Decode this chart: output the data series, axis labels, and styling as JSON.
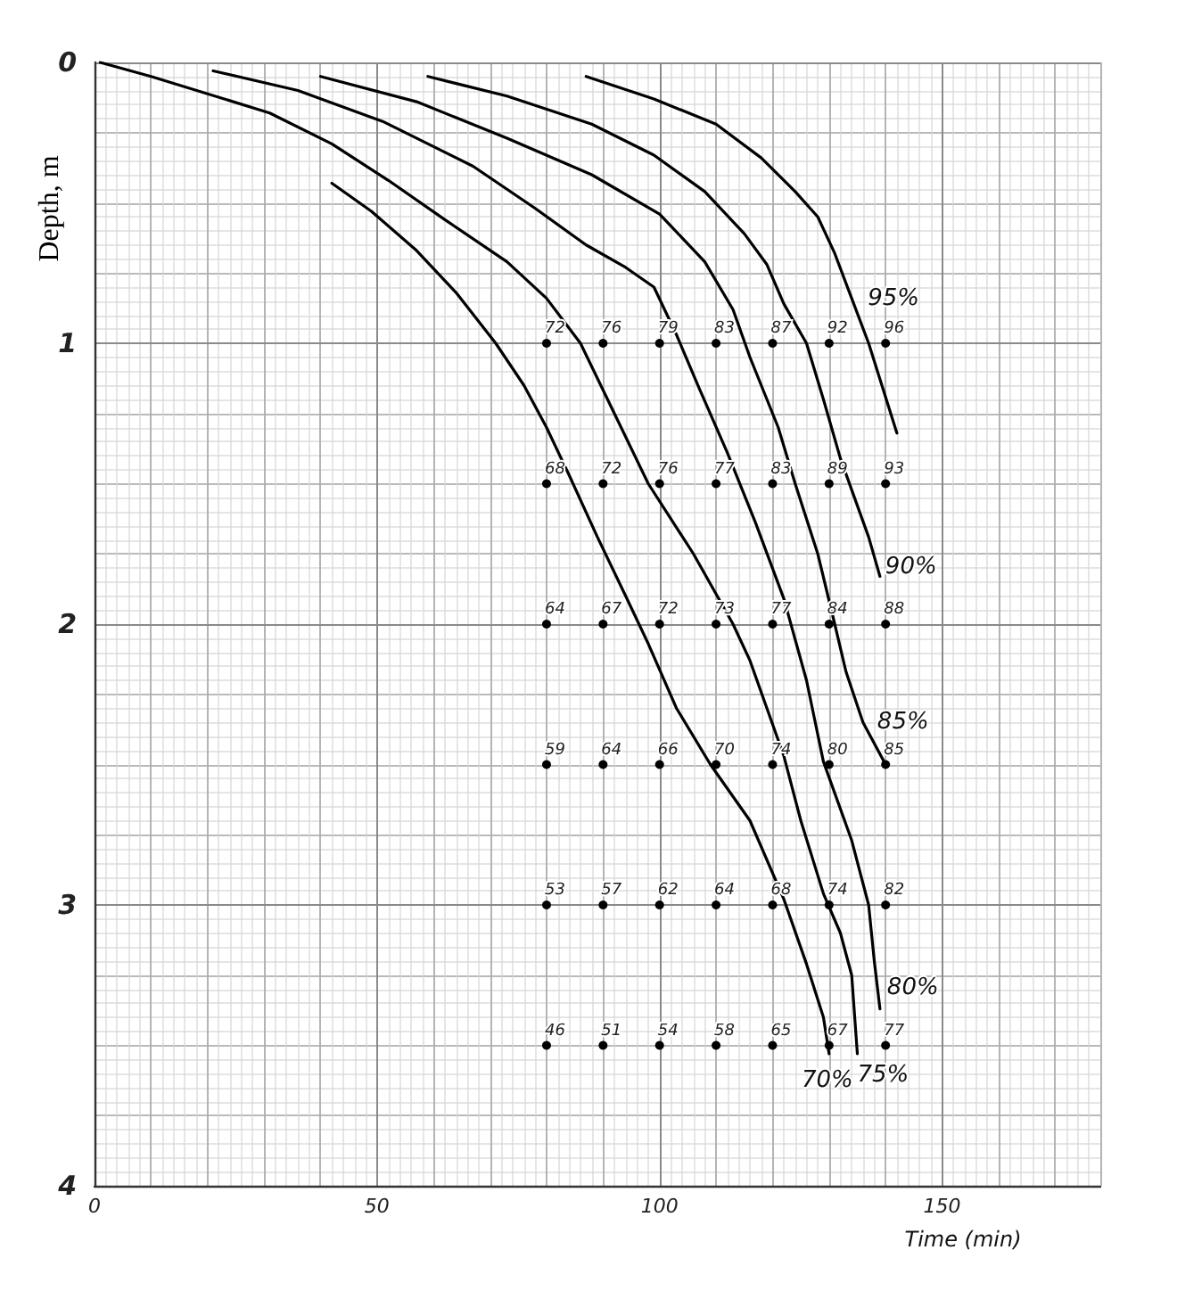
{
  "chart_data": {
    "type": "line",
    "xlabel": "Time (min)",
    "ylabel": "Depth, m",
    "xlim": [
      0,
      178
    ],
    "xticks": [
      0,
      50,
      100,
      150
    ],
    "ylim": [
      4,
      0
    ],
    "yticks": [
      0,
      1,
      2,
      3,
      4
    ],
    "grid": true,
    "series": [
      {
        "color": "#000000",
        "x": [
          87,
          99,
          110,
          118,
          124,
          128,
          131,
          134,
          137,
          142
        ],
        "values": [
          0.05,
          0.13,
          0.22,
          0.34,
          0.46,
          0.55,
          0.68,
          0.84,
          1.0,
          1.32
        ]
      },
      {
        "color": "#000000",
        "x": [
          59,
          73,
          88,
          99,
          108,
          115,
          119,
          122,
          126,
          129,
          132,
          137,
          139
        ],
        "values": [
          0.05,
          0.12,
          0.22,
          0.33,
          0.46,
          0.61,
          0.72,
          0.86,
          1.0,
          1.2,
          1.41,
          1.69,
          1.83
        ]
      },
      {
        "color": "#000000",
        "x": [
          40,
          57,
          73,
          88,
          100,
          108,
          113,
          116,
          121,
          124,
          128,
          131,
          133,
          136,
          140
        ],
        "values": [
          0.05,
          0.14,
          0.27,
          0.4,
          0.54,
          0.71,
          0.88,
          1.05,
          1.3,
          1.5,
          1.75,
          2.0,
          2.17,
          2.35,
          2.5
        ]
      },
      {
        "color": "#000000",
        "x": [
          21,
          36,
          51,
          67,
          78,
          87,
          94,
          99,
          103,
          107,
          112,
          117,
          122,
          126,
          129,
          134,
          137,
          138,
          139
        ],
        "values": [
          0.03,
          0.1,
          0.21,
          0.37,
          0.52,
          0.65,
          0.73,
          0.8,
          0.97,
          1.16,
          1.39,
          1.64,
          1.91,
          2.2,
          2.49,
          2.77,
          3.0,
          3.2,
          3.37
        ]
      },
      {
        "color": "#000000",
        "x": [
          1,
          10,
          31,
          42,
          52,
          62,
          73,
          80,
          86,
          92,
          98,
          106,
          113,
          116,
          119,
          122,
          125,
          129,
          132,
          134,
          135
        ],
        "values": [
          0,
          0.05,
          0.18,
          0.29,
          0.42,
          0.56,
          0.71,
          0.84,
          1.0,
          1.25,
          1.5,
          1.75,
          2.0,
          2.13,
          2.3,
          2.47,
          2.7,
          2.96,
          3.1,
          3.25,
          3.53
        ]
      },
      {
        "color": "#000000",
        "x": [
          42,
          49,
          57,
          64,
          71,
          76,
          80,
          84,
          89,
          94,
          98,
          103,
          109,
          116,
          122,
          126,
          129,
          130
        ],
        "values": [
          0.43,
          0.53,
          0.67,
          0.82,
          1.0,
          1.15,
          1.3,
          1.47,
          1.69,
          1.9,
          2.07,
          2.3,
          2.5,
          2.7,
          2.98,
          3.21,
          3.4,
          3.53
        ]
      },
      {
        "type": "scatter",
        "color": "#000000",
        "marker": "circle",
        "x": [
          80,
          90,
          100,
          110,
          120,
          130,
          140,
          80,
          90,
          100,
          110,
          120,
          130,
          140,
          80,
          90,
          100,
          110,
          120,
          130,
          140,
          80,
          90,
          100,
          110,
          120,
          130,
          140,
          80,
          90,
          100,
          110,
          120,
          130,
          140,
          80,
          90,
          100,
          110,
          120,
          130,
          140
        ],
        "values": [
          1,
          1,
          1,
          1,
          1,
          1,
          1,
          1.5,
          1.5,
          1.5,
          1.5,
          1.5,
          1.5,
          1.5,
          2,
          2,
          2,
          2,
          2,
          2,
          2,
          2.5,
          2.5,
          2.5,
          2.5,
          2.5,
          2.5,
          2.5,
          3,
          3,
          3,
          3,
          3,
          3,
          3,
          3.5,
          3.5,
          3.5,
          3.5,
          3.5,
          3.5,
          3.5
        ]
      }
    ],
    "annotations": [
      {
        "text": "95%",
        "x": 134,
        "y": 0.84
      },
      {
        "text": "90%",
        "x": 139,
        "y": 1.83
      },
      {
        "text": "85%",
        "x": 136,
        "y": 2.35
      },
      {
        "text": "80%",
        "x": 139,
        "y": 3.37
      },
      {
        "text": "75%",
        "x": 135,
        "y": 3.53
      },
      {
        "text": "70%",
        "x": 130,
        "y": 3.53
      },
      {
        "text": "72",
        "x": 80,
        "y": 1
      },
      {
        "text": "76",
        "x": 90,
        "y": 1
      },
      {
        "text": "79",
        "x": 100,
        "y": 1
      },
      {
        "text": "83",
        "x": 110,
        "y": 1
      },
      {
        "text": "87",
        "x": 120,
        "y": 1
      },
      {
        "text": "92",
        "x": 130,
        "y": 1
      },
      {
        "text": "96",
        "x": 140,
        "y": 1
      },
      {
        "text": "68",
        "x": 80,
        "y": 1.5
      },
      {
        "text": "72",
        "x": 90,
        "y": 1.5
      },
      {
        "text": "76",
        "x": 100,
        "y": 1.5
      },
      {
        "text": "77",
        "x": 110,
        "y": 1.5
      },
      {
        "text": "83",
        "x": 120,
        "y": 1.5
      },
      {
        "text": "89",
        "x": 130,
        "y": 1.5
      },
      {
        "text": "93",
        "x": 140,
        "y": 1.5
      },
      {
        "text": "64",
        "x": 80,
        "y": 2
      },
      {
        "text": "67",
        "x": 90,
        "y": 2
      },
      {
        "text": "72",
        "x": 100,
        "y": 2
      },
      {
        "text": "73",
        "x": 110,
        "y": 2
      },
      {
        "text": "77",
        "x": 120,
        "y": 2
      },
      {
        "text": "84",
        "x": 130,
        "y": 2
      },
      {
        "text": "88",
        "x": 140,
        "y": 2
      },
      {
        "text": "59",
        "x": 80,
        "y": 2.5
      },
      {
        "text": "64",
        "x": 90,
        "y": 2.5
      },
      {
        "text": "66",
        "x": 100,
        "y": 2.5
      },
      {
        "text": "70",
        "x": 110,
        "y": 2.5
      },
      {
        "text": "74",
        "x": 120,
        "y": 2.5
      },
      {
        "text": "80",
        "x": 130,
        "y": 2.5
      },
      {
        "text": "85",
        "x": 140,
        "y": 2.5
      },
      {
        "text": "53",
        "x": 80,
        "y": 3
      },
      {
        "text": "57",
        "x": 90,
        "y": 3
      },
      {
        "text": "62",
        "x": 100,
        "y": 3
      },
      {
        "text": "64",
        "x": 110,
        "y": 3
      },
      {
        "text": "68",
        "x": 120,
        "y": 3
      },
      {
        "text": "74",
        "x": 130,
        "y": 3
      },
      {
        "text": "82",
        "x": 140,
        "y": 3
      },
      {
        "text": "46",
        "x": 80,
        "y": 3.5
      },
      {
        "text": "51",
        "x": 90,
        "y": 3.5
      },
      {
        "text": "54",
        "x": 100,
        "y": 3.5
      },
      {
        "text": "58",
        "x": 110,
        "y": 3.5
      },
      {
        "text": "65",
        "x": 120,
        "y": 3.5
      },
      {
        "text": "67",
        "x": 130,
        "y": 3.5
      },
      {
        "text": "77",
        "x": 140,
        "y": 3.5
      }
    ]
  }
}
